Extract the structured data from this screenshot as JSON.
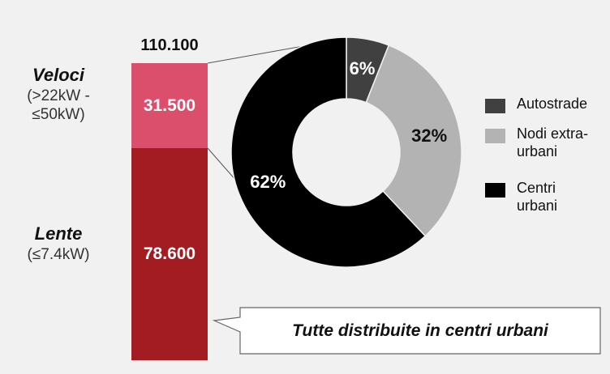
{
  "chart_data": [
    {
      "type": "bar",
      "stacked": true,
      "categories": [
        null
      ],
      "total": {
        "value": 110100,
        "label": "110.100"
      },
      "series": [
        {
          "name": "Lente",
          "note": "(≤7.4kW)",
          "color": "#a31c22",
          "values": [
            78600
          ],
          "value_labels": [
            "78.600"
          ]
        },
        {
          "name": "Veloci",
          "note": "(>22kW - ≤50kW)",
          "color": "#dc4f6c",
          "values": [
            31500
          ],
          "value_labels": [
            "31.500"
          ]
        }
      ]
    },
    {
      "type": "pie",
      "donut": true,
      "legend": "right",
      "categories": [
        "Autostrade",
        "Nodi extra-urbani",
        "Centri urbani"
      ],
      "values": [
        6,
        32,
        62
      ],
      "value_labels": [
        "6%",
        "32%",
        "62%"
      ],
      "colors": [
        "#404040",
        "#b3b3b3",
        "#000000"
      ]
    }
  ],
  "annotation": "Tutte distribuite in centri urbani"
}
